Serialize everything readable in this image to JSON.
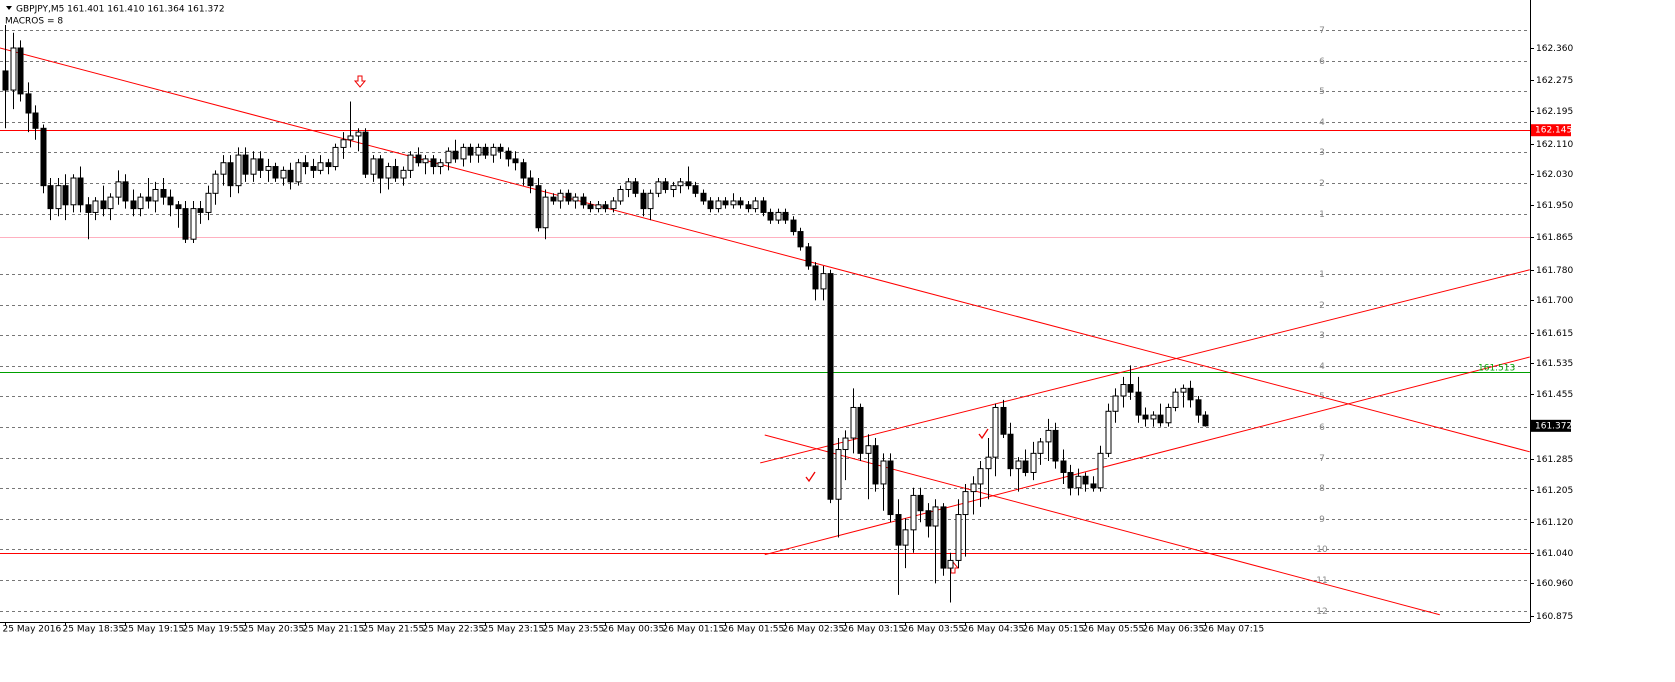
{
  "header": {
    "symbol_line": "GBPJPY,M5  161.401 161.410 161.364 161.372",
    "macros": "MACROS = 8"
  },
  "chart_data": {
    "type": "candlestick",
    "categories": [
      "25 May 2016",
      null,
      null,
      null,
      null,
      null,
      null,
      null,
      "25 May 18:35",
      null,
      null,
      null,
      null,
      null,
      null,
      null,
      "25 May 19:15",
      null,
      null,
      null,
      null,
      null,
      null,
      null,
      "25 May 19:55",
      null,
      null,
      null,
      null,
      null,
      null,
      null,
      "25 May 20:35",
      null,
      null,
      null,
      null,
      null,
      null,
      null,
      "25 May 21:15",
      null,
      null,
      null,
      null,
      null,
      null,
      null,
      "25 May 21:55",
      null,
      null,
      null,
      null,
      null,
      null,
      null,
      "25 May 22:35",
      null,
      null,
      null,
      null,
      null,
      null,
      null,
      "25 May 23:15",
      null,
      null,
      null,
      null,
      null,
      null,
      null,
      "25 May 23:55",
      null,
      null,
      null,
      null,
      null,
      null,
      null,
      "26 May 00:35",
      null,
      null,
      null,
      null,
      null,
      null,
      null,
      "26 May 01:15",
      null,
      null,
      null,
      null,
      null,
      null,
      null,
      "26 May 01:55",
      null,
      null,
      null,
      null,
      null,
      null,
      null,
      "26 May 02:35",
      null,
      null,
      null,
      null,
      null,
      null,
      null,
      "26 May 03:15",
      null,
      null,
      null,
      null,
      null,
      null,
      null,
      "26 May 03:55",
      null,
      null,
      null,
      null,
      null,
      null,
      null,
      "26 May 04:35",
      null,
      null,
      null,
      null,
      null,
      null,
      null,
      "26 May 05:15",
      null,
      null,
      null,
      null,
      null,
      null,
      null,
      "26 May 05:55",
      null,
      null,
      null,
      null,
      null,
      null,
      null,
      "26 May 06:35",
      null,
      null,
      null,
      null,
      null,
      null,
      null,
      "26 May 07:15"
    ],
    "ohlc": [
      [
        162.3,
        162.42,
        162.15,
        162.25
      ],
      [
        162.25,
        162.4,
        162.2,
        162.36
      ],
      [
        162.36,
        162.38,
        162.22,
        162.24
      ],
      [
        162.24,
        162.27,
        162.14,
        162.19
      ],
      [
        162.19,
        162.21,
        162.12,
        162.15
      ],
      [
        162.15,
        162.16,
        161.98,
        162.0
      ],
      [
        162.0,
        162.02,
        161.91,
        161.94
      ],
      [
        161.94,
        162.02,
        161.92,
        162.0
      ],
      [
        162.0,
        162.03,
        161.91,
        161.95
      ],
      [
        161.95,
        162.03,
        161.93,
        162.02
      ],
      [
        162.02,
        162.05,
        161.93,
        161.95
      ],
      [
        161.95,
        161.97,
        161.86,
        161.93
      ],
      [
        161.93,
        161.97,
        161.91,
        161.96
      ],
      [
        161.96,
        162.0,
        161.92,
        161.94
      ],
      [
        161.94,
        161.98,
        161.91,
        161.97
      ],
      [
        161.97,
        162.04,
        161.95,
        162.01
      ],
      [
        162.01,
        162.03,
        161.94,
        161.96
      ],
      [
        161.96,
        161.99,
        161.92,
        161.94
      ],
      [
        161.94,
        161.98,
        161.92,
        161.97
      ],
      [
        161.97,
        162.02,
        161.94,
        161.96
      ],
      [
        161.96,
        162.01,
        161.93,
        161.99
      ],
      [
        161.99,
        162.02,
        161.95,
        161.97
      ],
      [
        161.97,
        161.99,
        161.92,
        161.95
      ],
      [
        161.95,
        161.96,
        161.89,
        161.94
      ],
      [
        161.94,
        161.96,
        161.85,
        161.86
      ],
      [
        161.86,
        161.96,
        161.85,
        161.94
      ],
      [
        161.94,
        161.96,
        161.9,
        161.93
      ],
      [
        161.93,
        162.0,
        161.91,
        161.98
      ],
      [
        161.98,
        162.04,
        161.95,
        162.03
      ],
      [
        162.03,
        162.08,
        162.0,
        162.06
      ],
      [
        162.06,
        162.08,
        161.97,
        162.0
      ],
      [
        162.0,
        162.1,
        161.98,
        162.08
      ],
      [
        162.08,
        162.1,
        162.01,
        162.03
      ],
      [
        162.03,
        162.09,
        162.01,
        162.07
      ],
      [
        162.07,
        162.09,
        162.02,
        162.04
      ],
      [
        162.04,
        162.07,
        162.01,
        162.05
      ],
      [
        162.05,
        162.06,
        162.01,
        162.02
      ],
      [
        162.02,
        162.05,
        162.0,
        162.04
      ],
      [
        162.04,
        162.06,
        161.99,
        162.01
      ],
      [
        162.01,
        162.07,
        162.0,
        162.06
      ],
      [
        162.06,
        162.08,
        162.03,
        162.05
      ],
      [
        162.05,
        162.07,
        162.02,
        162.04
      ],
      [
        162.04,
        162.08,
        162.03,
        162.06
      ],
      [
        162.06,
        162.07,
        162.03,
        162.05
      ],
      [
        162.05,
        162.11,
        162.04,
        162.1
      ],
      [
        162.1,
        162.14,
        162.07,
        162.12
      ],
      [
        162.12,
        162.22,
        162.1,
        162.13
      ],
      [
        162.13,
        162.15,
        162.09,
        162.14
      ],
      [
        162.14,
        162.15,
        162.02,
        162.03
      ],
      [
        162.03,
        162.08,
        162.01,
        162.07
      ],
      [
        162.07,
        162.08,
        161.98,
        162.02
      ],
      [
        162.02,
        162.06,
        161.99,
        162.05
      ],
      [
        162.05,
        162.07,
        162.01,
        162.02
      ],
      [
        162.02,
        162.05,
        162.0,
        162.04
      ],
      [
        162.04,
        162.09,
        162.02,
        162.08
      ],
      [
        162.08,
        162.1,
        162.05,
        162.06
      ],
      [
        162.06,
        162.08,
        162.03,
        162.07
      ],
      [
        162.07,
        162.08,
        162.03,
        162.05
      ],
      [
        162.05,
        162.07,
        162.03,
        162.06
      ],
      [
        162.06,
        162.1,
        162.04,
        162.09
      ],
      [
        162.09,
        162.12,
        162.06,
        162.07
      ],
      [
        162.07,
        162.11,
        162.05,
        162.1
      ],
      [
        162.1,
        162.11,
        162.06,
        162.08
      ],
      [
        162.08,
        162.11,
        162.06,
        162.1
      ],
      [
        162.1,
        162.11,
        162.07,
        162.08
      ],
      [
        162.08,
        162.11,
        162.06,
        162.1
      ],
      [
        162.1,
        162.11,
        162.07,
        162.09
      ],
      [
        162.09,
        162.1,
        162.05,
        162.07
      ],
      [
        162.07,
        162.09,
        162.04,
        162.06
      ],
      [
        162.06,
        162.07,
        162.0,
        162.02
      ],
      [
        162.02,
        162.04,
        161.98,
        162.0
      ],
      [
        162.0,
        162.02,
        161.88,
        161.89
      ],
      [
        161.89,
        161.99,
        161.86,
        161.97
      ],
      [
        161.97,
        161.98,
        161.95,
        161.96
      ],
      [
        161.96,
        161.99,
        161.94,
        161.98
      ],
      [
        161.98,
        161.99,
        161.95,
        161.96
      ],
      [
        161.96,
        161.98,
        161.94,
        161.97
      ],
      [
        161.97,
        161.98,
        161.94,
        161.95
      ],
      [
        161.95,
        161.96,
        161.93,
        161.94
      ],
      [
        161.94,
        161.96,
        161.93,
        161.95
      ],
      [
        161.95,
        161.96,
        161.93,
        161.94
      ],
      [
        161.94,
        161.97,
        161.93,
        161.96
      ],
      [
        161.96,
        162.0,
        161.95,
        161.99
      ],
      [
        161.99,
        162.02,
        161.97,
        162.01
      ],
      [
        162.01,
        162.02,
        161.97,
        161.98
      ],
      [
        161.98,
        161.99,
        161.92,
        161.94
      ],
      [
        161.94,
        161.99,
        161.91,
        161.98
      ],
      [
        161.98,
        162.02,
        161.97,
        162.01
      ],
      [
        162.01,
        162.02,
        161.98,
        161.99
      ],
      [
        161.99,
        162.01,
        161.97,
        162.0
      ],
      [
        162.0,
        162.02,
        161.98,
        162.01
      ],
      [
        162.01,
        162.05,
        161.99,
        162.0
      ],
      [
        162.0,
        162.01,
        161.97,
        161.98
      ],
      [
        161.98,
        161.99,
        161.95,
        161.96
      ],
      [
        161.96,
        161.97,
        161.93,
        161.94
      ],
      [
        161.94,
        161.97,
        161.93,
        161.96
      ],
      [
        161.96,
        161.97,
        161.94,
        161.95
      ],
      [
        161.95,
        161.98,
        161.94,
        161.96
      ],
      [
        161.96,
        161.97,
        161.94,
        161.95
      ],
      [
        161.95,
        161.96,
        161.93,
        161.94
      ],
      [
        161.94,
        161.97,
        161.93,
        161.96
      ],
      [
        161.96,
        161.97,
        161.92,
        161.93
      ],
      [
        161.93,
        161.94,
        161.9,
        161.91
      ],
      [
        161.91,
        161.94,
        161.9,
        161.93
      ],
      [
        161.93,
        161.94,
        161.9,
        161.91
      ],
      [
        161.91,
        161.92,
        161.87,
        161.88
      ],
      [
        161.88,
        161.89,
        161.83,
        161.84
      ],
      [
        161.84,
        161.85,
        161.78,
        161.79
      ],
      [
        161.79,
        161.8,
        161.7,
        161.73
      ],
      [
        161.73,
        161.79,
        161.7,
        161.77
      ],
      [
        161.77,
        161.78,
        161.17,
        161.18
      ],
      [
        161.18,
        161.34,
        161.08,
        161.31
      ],
      [
        161.31,
        161.36,
        161.23,
        161.34
      ],
      [
        161.34,
        161.47,
        161.3,
        161.42
      ],
      [
        161.42,
        161.43,
        161.28,
        161.3
      ],
      [
        161.3,
        161.35,
        161.18,
        161.32
      ],
      [
        161.32,
        161.34,
        161.2,
        161.22
      ],
      [
        161.22,
        161.3,
        161.15,
        161.28
      ],
      [
        161.28,
        161.3,
        161.12,
        161.14
      ],
      [
        161.14,
        161.18,
        160.93,
        161.06
      ],
      [
        161.06,
        161.13,
        161.0,
        161.1
      ],
      [
        161.1,
        161.21,
        161.04,
        161.19
      ],
      [
        161.19,
        161.21,
        161.12,
        161.15
      ],
      [
        161.15,
        161.17,
        161.08,
        161.11
      ],
      [
        161.11,
        161.18,
        160.96,
        161.16
      ],
      [
        161.16,
        161.17,
        160.98,
        161.0
      ],
      [
        161.0,
        161.04,
        160.91,
        161.02
      ],
      [
        161.02,
        161.18,
        161.0,
        161.14
      ],
      [
        161.14,
        161.22,
        161.03,
        161.2
      ],
      [
        161.2,
        161.24,
        161.14,
        161.22
      ],
      [
        161.22,
        161.28,
        161.16,
        161.26
      ],
      [
        161.26,
        161.34,
        161.18,
        161.29
      ],
      [
        161.29,
        161.43,
        161.24,
        161.42
      ],
      [
        161.42,
        161.44,
        161.34,
        161.35
      ],
      [
        161.35,
        161.38,
        161.24,
        161.26
      ],
      [
        161.26,
        161.29,
        161.2,
        161.28
      ],
      [
        161.28,
        161.31,
        161.24,
        161.25
      ],
      [
        161.25,
        161.33,
        161.23,
        161.3
      ],
      [
        161.3,
        161.34,
        161.27,
        161.33
      ],
      [
        161.33,
        161.39,
        161.28,
        161.36
      ],
      [
        161.36,
        161.38,
        161.26,
        161.28
      ],
      [
        161.28,
        161.31,
        161.22,
        161.25
      ],
      [
        161.25,
        161.27,
        161.19,
        161.21
      ],
      [
        161.21,
        161.26,
        161.19,
        161.24
      ],
      [
        161.24,
        161.25,
        161.2,
        161.22
      ],
      [
        161.22,
        161.24,
        161.2,
        161.21
      ],
      [
        161.21,
        161.32,
        161.2,
        161.3
      ],
      [
        161.3,
        161.43,
        161.29,
        161.41
      ],
      [
        161.41,
        161.47,
        161.38,
        161.45
      ],
      [
        161.45,
        161.5,
        161.42,
        161.48
      ],
      [
        161.48,
        161.53,
        161.44,
        161.46
      ],
      [
        161.46,
        161.5,
        161.38,
        161.4
      ],
      [
        161.4,
        161.42,
        161.37,
        161.39
      ],
      [
        161.39,
        161.41,
        161.37,
        161.4
      ],
      [
        161.4,
        161.43,
        161.37,
        161.38
      ],
      [
        161.38,
        161.43,
        161.37,
        161.42
      ],
      [
        161.42,
        161.47,
        161.41,
        161.46
      ],
      [
        161.46,
        161.48,
        161.42,
        161.47
      ],
      [
        161.47,
        161.49,
        161.42,
        161.44
      ],
      [
        161.44,
        161.45,
        161.38,
        161.4
      ],
      [
        161.4,
        161.41,
        161.37,
        161.372
      ]
    ],
    "up_color": "#ffffff",
    "down_color": "#000000",
    "ylim": [
      160.859,
      162.4855
    ],
    "yticks": [
      {
        "value": 162.36,
        "label": "162.360"
      },
      {
        "value": 162.275,
        "label": "162.275"
      },
      {
        "value": 162.195,
        "label": "162.195"
      },
      {
        "value": 162.11,
        "label": "162.110"
      },
      {
        "value": 162.03,
        "label": "162.030"
      },
      {
        "value": 161.95,
        "label": "161.950"
      },
      {
        "value": 161.865,
        "label": "161.865"
      },
      {
        "value": 161.78,
        "label": "161.780"
      },
      {
        "value": 161.7,
        "label": "161.700"
      },
      {
        "value": 161.615,
        "label": "161.615"
      },
      {
        "value": 161.535,
        "label": "161.535"
      },
      {
        "value": 161.455,
        "label": "161.455"
      },
      {
        "value": 161.285,
        "label": "161.285"
      },
      {
        "value": 161.205,
        "label": "161.205"
      },
      {
        "value": 161.12,
        "label": "161.120"
      },
      {
        "value": 161.04,
        "label": "161.040"
      },
      {
        "value": 160.96,
        "label": "160.960"
      },
      {
        "value": 160.875,
        "label": "160.875"
      }
    ],
    "hlines": [
      {
        "value": 162.145,
        "color": "#ff0000",
        "label": "162.145"
      },
      {
        "value": 161.865,
        "color": "#ffb0c0"
      },
      {
        "value": 161.513,
        "color": "#00a000",
        "label": "161.513"
      },
      {
        "value": 161.04,
        "color": "#ff0000"
      }
    ],
    "current_price": {
      "value": 161.372,
      "label": "161.372"
    },
    "levels": [
      {
        "value": 162.407,
        "label": "7"
      },
      {
        "value": 162.327,
        "label": "6"
      },
      {
        "value": 162.247,
        "label": "5"
      },
      {
        "value": 162.167,
        "label": "4"
      },
      {
        "value": 162.087,
        "label": "3"
      },
      {
        "value": 162.007,
        "label": "2"
      },
      {
        "value": 161.927,
        "label": "1"
      },
      {
        "value": 161.769,
        "label": "1"
      },
      {
        "value": 161.689,
        "label": "2"
      },
      {
        "value": 161.609,
        "label": "3"
      },
      {
        "value": 161.529,
        "label": "4"
      },
      {
        "value": 161.449,
        "label": "5"
      },
      {
        "value": 161.369,
        "label": "6"
      },
      {
        "value": 161.289,
        "label": "7"
      },
      {
        "value": 161.209,
        "label": "8"
      },
      {
        "value": 161.129,
        "label": "9"
      },
      {
        "value": 161.049,
        "label": "10"
      },
      {
        "value": 160.969,
        "label": "11"
      },
      {
        "value": 160.889,
        "label": "12"
      }
    ],
    "trendline_color": "#ff0000",
    "trendlines": [
      [
        [
          -0.67,
          162.36
        ],
        [
          203.3,
          161.304
        ]
      ],
      [
        [
          100.7,
          161.275
        ],
        [
          203.3,
          161.78
        ]
      ],
      [
        [
          101.3,
          161.035
        ],
        [
          203.3,
          161.552
        ]
      ],
      [
        [
          101.3,
          161.348
        ],
        [
          191.3,
          160.878
        ]
      ]
    ]
  }
}
